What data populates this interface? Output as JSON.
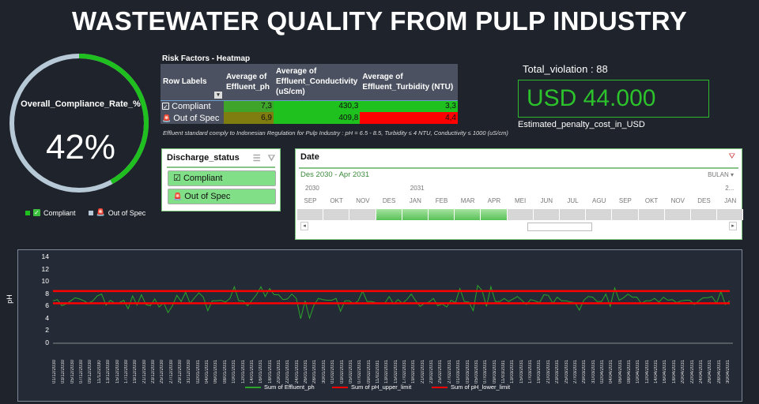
{
  "header": {
    "title": "WASTEWATER QUALITY FROM PULP INDUSTRY"
  },
  "compliance": {
    "label": "Overall_Compliance_Rate_%",
    "value": "42%",
    "percent": 42,
    "colors": {
      "compliant": "#1fbf1f",
      "out_of_spec": "#b7c9d6"
    },
    "legend": [
      {
        "label": "Compliant",
        "icon": "checkbox-icon"
      },
      {
        "label": "Out of Spec",
        "icon": "siren-icon"
      }
    ]
  },
  "heatmap": {
    "title": "Risk Factors - Heatmap",
    "columns": [
      "Row Labels",
      "Average of Effluent_ph",
      "Average of Effluent_Conductivity (uS/cm)",
      "Average of Effluent_Turbidity (NTU)"
    ],
    "rows": [
      {
        "label": "Compliant",
        "icon": "checkbox-icon",
        "ph": "7,3",
        "conductivity": "430,3",
        "turbidity": "3,3",
        "colors": [
          "#3ea52a",
          "#1fc11f",
          "#1fc11f"
        ]
      },
      {
        "label": "Out of Spec",
        "icon": "siren-icon",
        "ph": "6,9",
        "conductivity": "409,8",
        "turbidity": "4,4",
        "colors": [
          "#7f7d10",
          "#1fc11f",
          "#ff0000"
        ]
      }
    ],
    "footnote": "Effluent standard comply to Indonesian Regulation for Pulp Industry : pH = 6.5 - 8.5, Turbidity ≤ 4 NTU, Conductivity ≤ 1000 (uS/cm)"
  },
  "kpi": {
    "total_violation": "Total_violation : 88",
    "penalty": "USD 44.000",
    "penalty_label": "Estimated_penalty_cost_in_USD"
  },
  "slicer": {
    "title": "Discharge_status",
    "items": [
      {
        "label": "Compliant",
        "icon": "checkbox-icon"
      },
      {
        "label": "Out of Spec",
        "icon": "siren-icon"
      }
    ]
  },
  "timeline": {
    "title": "Date",
    "range": "Des 2030 - Apr 2031",
    "level": "BULAN",
    "years": [
      {
        "label": "2030",
        "col": 0
      },
      {
        "label": "2031",
        "col": 4
      },
      {
        "label": "2...",
        "col": 16
      }
    ],
    "months": [
      "SEP",
      "OKT",
      "NOV",
      "DES",
      "JAN",
      "FEB",
      "MAR",
      "APR",
      "MEI",
      "JUN",
      "JUL",
      "AGU",
      "SEP",
      "OKT",
      "NOV",
      "DES",
      "JAN"
    ],
    "selected_start": 3,
    "selected_end": 7
  },
  "chart_data": {
    "type": "line",
    "title": "",
    "xlabel": "",
    "ylabel": "pH",
    "ylim": [
      0,
      14
    ],
    "yticks": [
      0,
      2,
      4,
      6,
      8,
      10,
      12,
      14
    ],
    "x_start": "01/12/2030",
    "x_end": "30/04/2031",
    "x_tick_labels": [
      "01/12/2030",
      "03/12/2030",
      "05/12/2030",
      "07/12/2030",
      "09/12/2030",
      "11/12/2030",
      "13/12/2030",
      "15/12/2030",
      "17/12/2030",
      "19/12/2030",
      "21/12/2030",
      "23/12/2030",
      "25/12/2030",
      "27/12/2030",
      "29/12/2030",
      "31/12/2030",
      "02/01/2031",
      "04/01/2031",
      "06/01/2031",
      "08/01/2031",
      "10/01/2031",
      "12/01/2031",
      "14/01/2031",
      "16/01/2031",
      "18/01/2031",
      "20/01/2031",
      "22/01/2031",
      "24/01/2031",
      "26/01/2031",
      "28/01/2031",
      "30/01/2031",
      "01/02/2031",
      "03/02/2031",
      "05/02/2031",
      "07/02/2031",
      "09/02/2031",
      "11/02/2031",
      "13/02/2031",
      "15/02/2031",
      "17/02/2031",
      "19/02/2031",
      "21/02/2031",
      "23/02/2031",
      "25/02/2031",
      "27/02/2031",
      "01/03/2031",
      "03/03/2031",
      "05/03/2031",
      "07/03/2031",
      "09/03/2031",
      "11/03/2031",
      "13/03/2031",
      "15/03/2031",
      "17/03/2031",
      "19/03/2031",
      "21/03/2031",
      "23/03/2031",
      "25/03/2031",
      "27/03/2031",
      "29/03/2031",
      "31/03/2031",
      "02/04/2031",
      "04/04/2031",
      "06/04/2031",
      "08/04/2031",
      "10/04/2031",
      "12/04/2031",
      "14/04/2031",
      "16/04/2031",
      "18/04/2031",
      "20/04/2031",
      "22/04/2031",
      "24/04/2031",
      "26/04/2031",
      "28/04/2031",
      "30/04/2031"
    ],
    "series": [
      {
        "name": "Sum of Effluent_ph",
        "color": "#2aa52a",
        "values": [
          6.9,
          7.1,
          6.1,
          6.4,
          6.9,
          7.4,
          7.2,
          6.9,
          6.5,
          6.9,
          7.7,
          8.0,
          6.2,
          7.0,
          6.5,
          6.6,
          7.0,
          5.6,
          7.7,
          6.2,
          7.9,
          6.3,
          6.1,
          7.2,
          5.9,
          6.6,
          5.0,
          6.1,
          7.8,
          6.8,
          8.3,
          6.5,
          7.4,
          8.2,
          7.5,
          5.3,
          6.9,
          6.9,
          7.0,
          6.7,
          7.3,
          9.2,
          6.9,
          6.9,
          6.1,
          7.0,
          7.9,
          9.2,
          7.6,
          8.9,
          7.9,
          7.9,
          7.1,
          7.2,
          8.0,
          7.3,
          4.0,
          6.9,
          4.1,
          6.2,
          7.3,
          7.1,
          7.0,
          7.0,
          7.3,
          5.2,
          6.9,
          6.9,
          6.4,
          6.9,
          8.5,
          6.8,
          6.8,
          6.6,
          6.5,
          6.5,
          7.6,
          6.4,
          7.1,
          6.5,
          7.1,
          8.0,
          6.9,
          6.0,
          6.5,
          6.7,
          7.3,
          6.1,
          6.4,
          5.9,
          7.0,
          6.6,
          8.9,
          6.8,
          6.7,
          5.3,
          9.4,
          8.6,
          6.0,
          9.2,
          6.8,
          6.8,
          7.3,
          6.8,
          7.2,
          7.6,
          7.0,
          6.3,
          7.1,
          6.9,
          6.6,
          7.9,
          7.8,
          6.5,
          7.5,
          6.9,
          6.9,
          6.7,
          6.6,
          5.4,
          7.0,
          7.6,
          7.5,
          6.8,
          6.8,
          8.0,
          6.0,
          9.0,
          7.0,
          7.4,
          8.0,
          7.5,
          7.5,
          6.5,
          6.9,
          6.9,
          7.3,
          6.7,
          7.5,
          7.0,
          7.1,
          6.6,
          6.9,
          7.0,
          7.0,
          6.3,
          6.9,
          7.4,
          7.4,
          7.6,
          6.5,
          8.4,
          6.3,
          6.9
        ]
      },
      {
        "name": "Sum of pH_upper_limit",
        "color": "#ff0000",
        "values": [
          8.5
        ]
      },
      {
        "name": "Sum of pH_lower_limit",
        "color": "#ff0000",
        "values": [
          6.5
        ]
      }
    ],
    "grid": false,
    "legend_position": "bottom"
  }
}
